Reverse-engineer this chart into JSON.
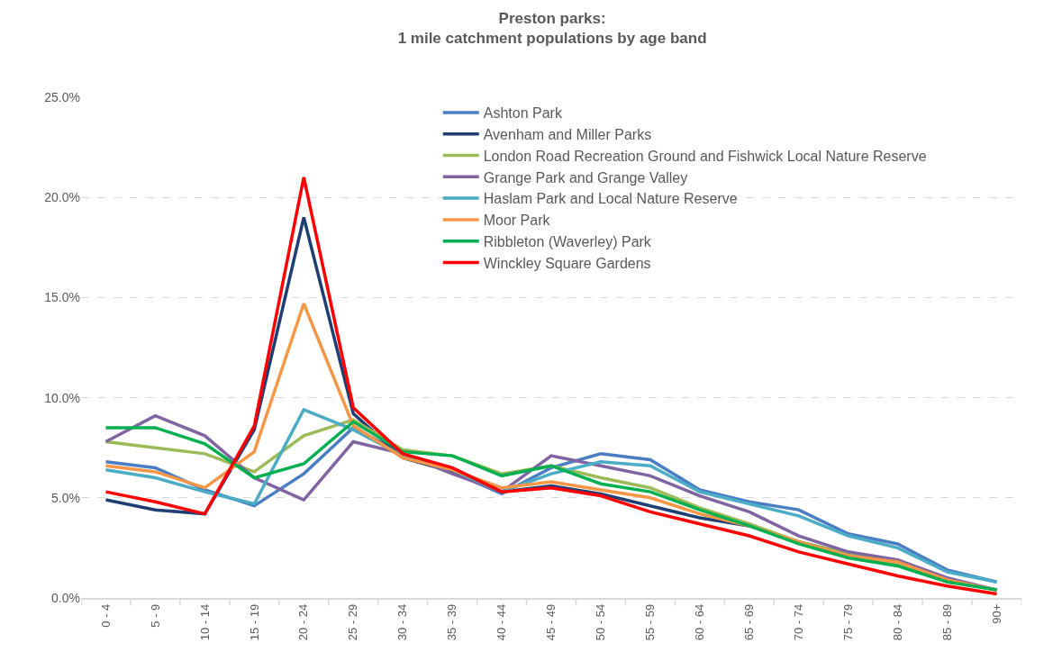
{
  "chart_data": {
    "type": "line",
    "title": "Preston parks:\n1 mile catchment populations by age band",
    "categories": [
      "0 - 4",
      "5 - 9",
      "10 - 14",
      "15 - 19",
      "20 - 24",
      "25 - 29",
      "30 - 34",
      "35 - 39",
      "40 - 44",
      "45 - 49",
      "50 - 54",
      "55 - 59",
      "60 - 64",
      "65 - 69",
      "70 - 74",
      "75 - 79",
      "80 - 84",
      "85 - 89",
      "90+"
    ],
    "series": [
      {
        "name": "Ashton Park",
        "color": "#4a7ec3",
        "values": [
          6.8,
          6.5,
          5.4,
          4.6,
          6.2,
          8.5,
          7.2,
          6.3,
          5.2,
          6.5,
          7.2,
          6.9,
          5.4,
          4.8,
          4.4,
          3.2,
          2.7,
          1.4,
          0.8
        ]
      },
      {
        "name": "Avenham and Miller Parks",
        "color": "#1f3f74",
        "values": [
          4.9,
          4.4,
          4.2,
          8.4,
          19.0,
          9.2,
          7.0,
          6.3,
          5.3,
          5.6,
          5.2,
          4.6,
          4.0,
          3.6,
          2.8,
          2.2,
          1.7,
          0.9,
          0.4
        ]
      },
      {
        "name": "London Road Recreation Ground and Fishwick Local Nature Reserve",
        "color": "#9bbb59",
        "values": [
          7.8,
          7.5,
          7.2,
          6.3,
          8.1,
          8.9,
          7.4,
          7.1,
          6.2,
          6.6,
          6.0,
          5.5,
          4.5,
          3.7,
          2.8,
          2.2,
          1.7,
          0.9,
          0.4
        ]
      },
      {
        "name": "Grange Park and Grange Valley",
        "color": "#8064a2",
        "values": [
          7.8,
          9.1,
          8.1,
          6.0,
          4.9,
          7.8,
          7.2,
          6.2,
          5.3,
          7.1,
          6.6,
          6.1,
          5.1,
          4.3,
          3.1,
          2.3,
          1.9,
          1.0,
          0.4
        ]
      },
      {
        "name": "Haslam Park and Local Nature Reserve",
        "color": "#4bacc6",
        "values": [
          6.4,
          6.0,
          5.3,
          4.7,
          9.4,
          8.4,
          7.1,
          6.4,
          5.3,
          6.2,
          6.8,
          6.6,
          5.3,
          4.7,
          4.1,
          3.1,
          2.5,
          1.3,
          0.8
        ]
      },
      {
        "name": "Moor Park",
        "color": "#f79646",
        "values": [
          6.6,
          6.3,
          5.5,
          7.3,
          14.7,
          8.6,
          7.0,
          6.4,
          5.5,
          5.8,
          5.4,
          5.0,
          4.2,
          3.6,
          2.8,
          2.1,
          1.8,
          0.9,
          0.4
        ]
      },
      {
        "name": "Ribbleton (Waverley) Park",
        "color": "#00b050",
        "values": [
          8.5,
          8.5,
          7.7,
          6.0,
          6.7,
          8.8,
          7.3,
          7.1,
          6.1,
          6.6,
          5.7,
          5.3,
          4.4,
          3.6,
          2.7,
          2.0,
          1.6,
          0.8,
          0.4
        ]
      },
      {
        "name": "Winckley Square Gardens",
        "color": "#ff0000",
        "values": [
          5.3,
          4.8,
          4.2,
          8.6,
          21.0,
          9.5,
          7.2,
          6.5,
          5.3,
          5.5,
          5.1,
          4.3,
          3.7,
          3.1,
          2.3,
          1.7,
          1.1,
          0.6,
          0.2
        ]
      }
    ],
    "ylim": [
      0,
      25
    ],
    "yticks": [
      {
        "value": 0,
        "label": "0.0%"
      },
      {
        "value": 5,
        "label": "5.0%"
      },
      {
        "value": 10,
        "label": "10.0%"
      },
      {
        "value": 15,
        "label": "15.0%"
      },
      {
        "value": 20,
        "label": "20.0%"
      },
      {
        "value": 25,
        "label": "25.0%"
      }
    ],
    "grid": "y",
    "legend": "top",
    "marker": "none",
    "line_style": "solid"
  }
}
